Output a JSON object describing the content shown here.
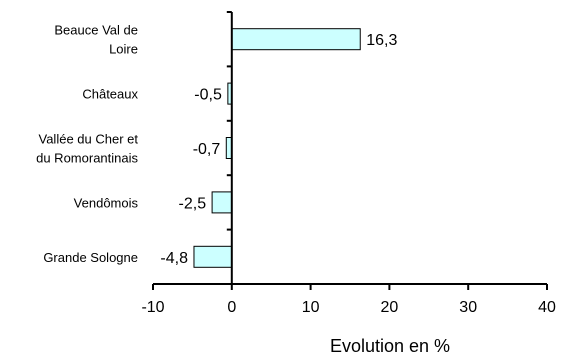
{
  "chart_data": {
    "type": "bar",
    "orientation": "horizontal",
    "categories": [
      [
        "Beauce Val de",
        "Loire"
      ],
      [
        "Châteaux"
      ],
      [
        "Vallée du Cher et",
        "du Romorantinais"
      ],
      [
        "Vendômois"
      ],
      [
        "Grande Sologne"
      ]
    ],
    "values": [
      16.3,
      -0.5,
      -0.7,
      -2.5,
      -4.8
    ],
    "value_labels": [
      "16,3",
      "-0,5",
      "-0,7",
      "-2,5",
      "-4,8"
    ],
    "xlabel": "Evolution en %",
    "xlim": [
      -10,
      40
    ],
    "xticks": [
      -10,
      0,
      10,
      20,
      30,
      40
    ],
    "xtick_labels": [
      "-10",
      "0",
      "10",
      "20",
      "30",
      "40"
    ],
    "bar_color": "#ccffff",
    "grid": false,
    "legend": "none"
  }
}
